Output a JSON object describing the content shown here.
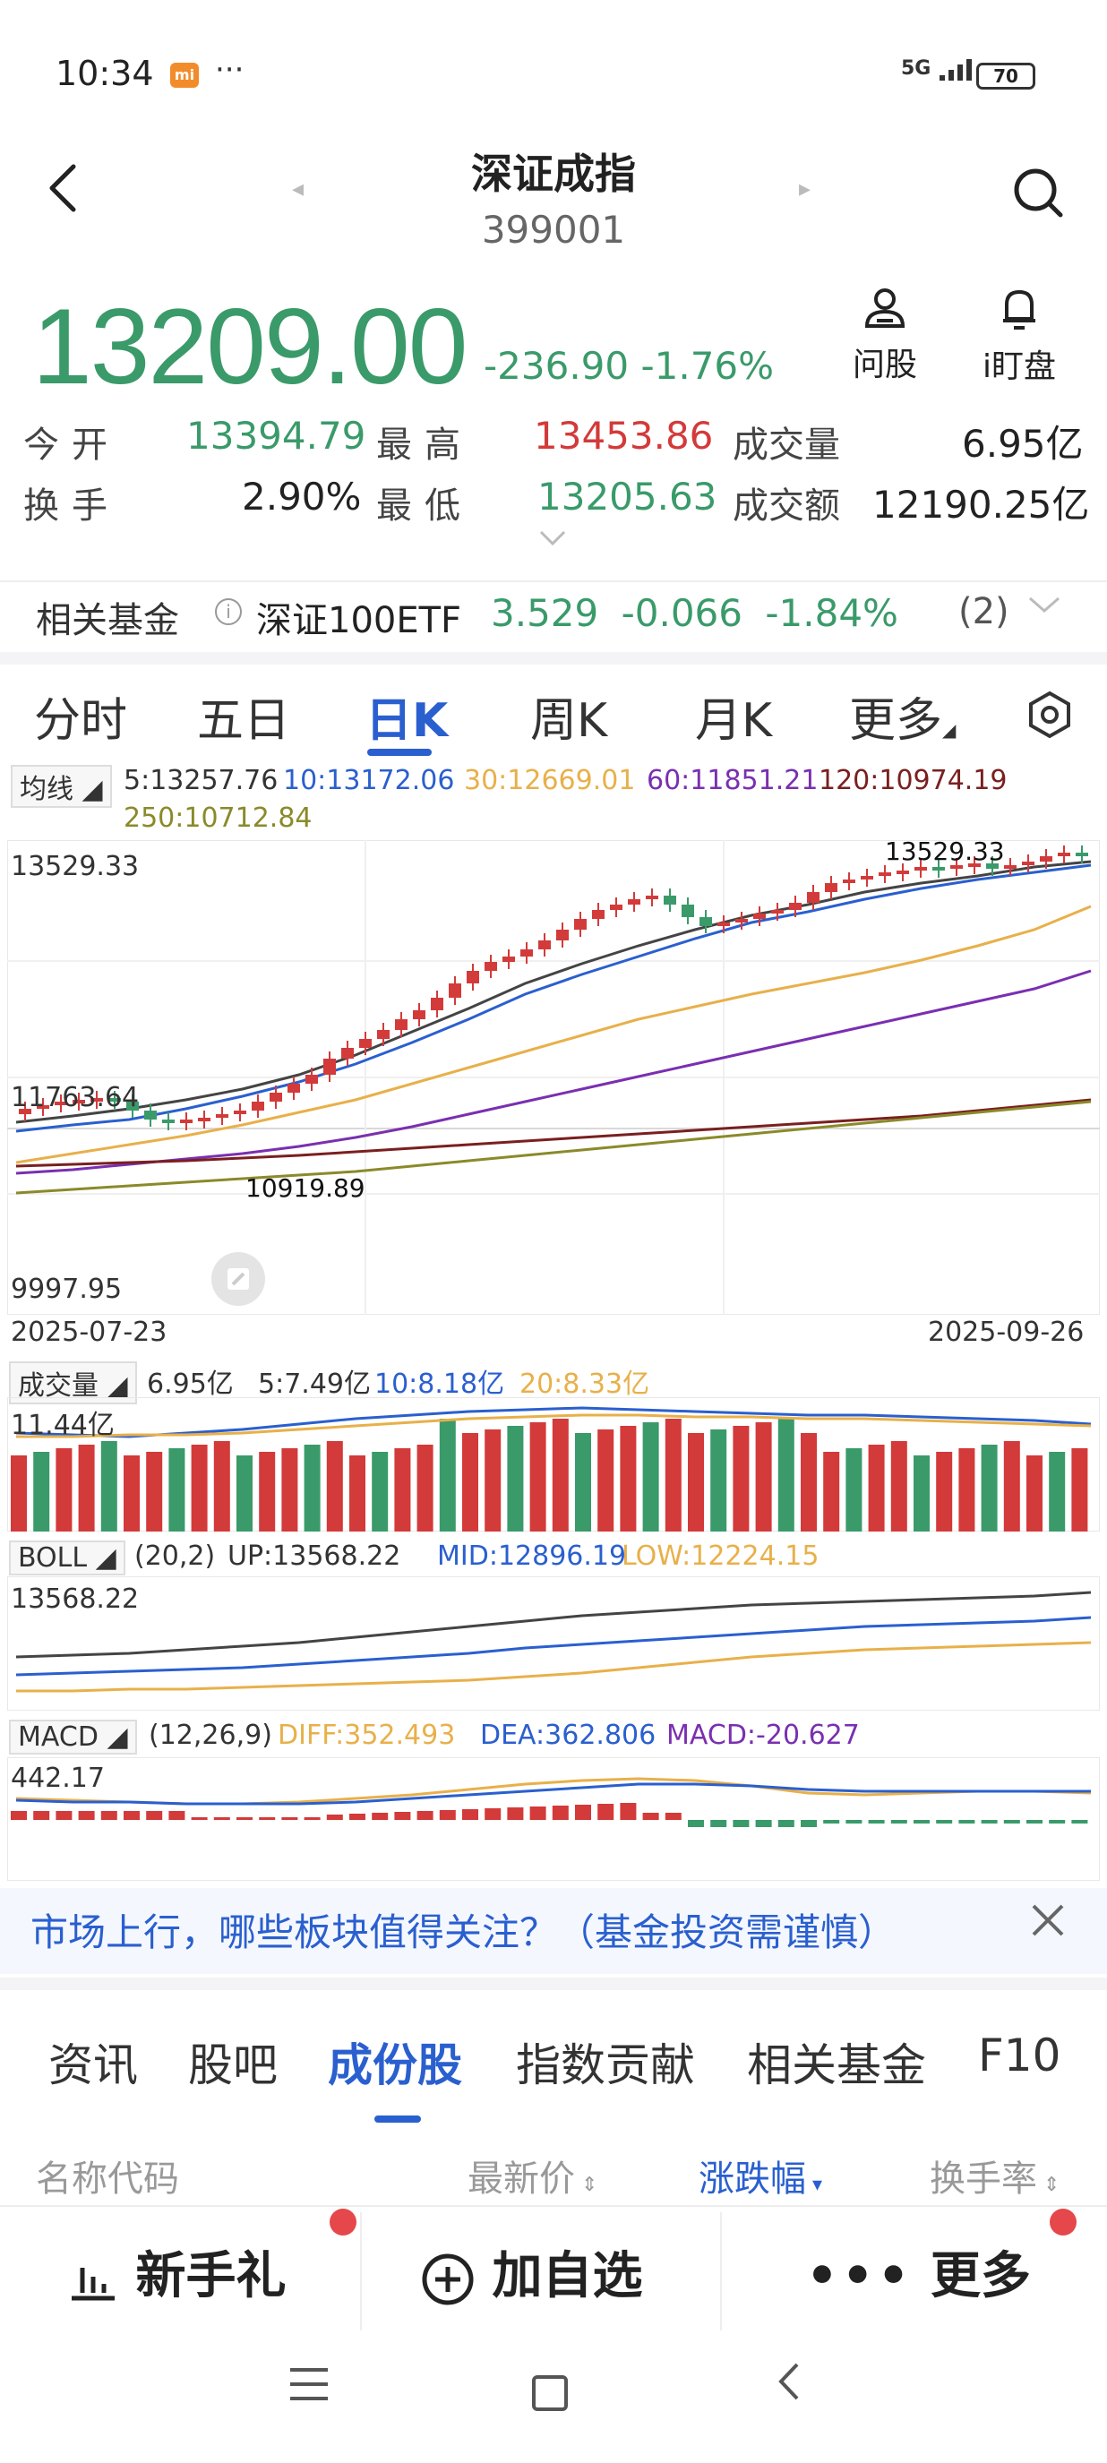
{
  "status_bar": {
    "time": "10:34",
    "app_badge": "mi",
    "dots": "···",
    "network": "5G",
    "battery": "70"
  },
  "header": {
    "title": "深证成指",
    "code": "399001",
    "prev_arrow": "◂",
    "next_arrow": "▸"
  },
  "quote": {
    "price": "13209.00",
    "change": "-236.90",
    "change_pct": "-1.76%",
    "ask_label": "问股",
    "watch_label": "i盯盘",
    "stats": {
      "open_label": "今开",
      "open_value": "13394.79",
      "high_label": "最高",
      "high_value": "13453.86",
      "volume_label": "成交量",
      "volume_value": "6.95亿",
      "turnover_label": "换手",
      "turnover_value": "2.90%",
      "low_label": "最低",
      "low_value": "13205.63",
      "amount_label": "成交额",
      "amount_value": "12190.25亿"
    }
  },
  "related_fund": {
    "label": "相关基金",
    "name": "深证100ETF",
    "price": "3.529",
    "change": "-0.066",
    "change_pct": "-1.84%",
    "count": "(2)"
  },
  "chart_tabs": [
    {
      "label": "分时"
    },
    {
      "label": "五日"
    },
    {
      "label": "日K"
    },
    {
      "label": "周K"
    },
    {
      "label": "月K"
    },
    {
      "label": "更多"
    }
  ],
  "ma_legend": {
    "badge": "均线",
    "ma5": "5:13257.76",
    "ma10": "10:13172.06",
    "ma30": "30:12669.01",
    "ma60": "60:11851.21",
    "ma120": "120:10974.19",
    "ma250": "250:10712.84"
  },
  "kline": {
    "y_high": "13529.33",
    "y_mid": "11763.64",
    "y_low": "9997.95",
    "max_marker": "13529.33",
    "min_marker": "10919.89",
    "date_start": "2025-07-23",
    "date_end": "2025-09-26"
  },
  "volume_legend": {
    "badge": "成交量",
    "current": "6.95亿",
    "ma5": "5:7.49亿",
    "ma10": "10:8.18亿",
    "ma20": "20:8.33亿",
    "y_max": "11.44亿"
  },
  "boll_legend": {
    "badge": "BOLL",
    "params": "(20,2)",
    "up": "UP:13568.22",
    "mid": "MID:12896.19",
    "low": "LOW:12224.15",
    "y_max": "13568.22"
  },
  "macd_legend": {
    "badge": "MACD",
    "params": "(12,26,9)",
    "diff": "DIFF:352.493",
    "dea": "DEA:362.806",
    "macd": "MACD:-20.627",
    "y_max": "442.17"
  },
  "colors": {
    "up": "#d33a3a",
    "down": "#3a9a6a",
    "accent": "#2a5fcf",
    "ma10": "#2a5fcf",
    "ma30": "#e8b04a",
    "ma60": "#7a2fb0",
    "ma120": "#7a1f1f",
    "ma250": "#8a8a2a"
  },
  "banner": {
    "text": "市场上行，哪些板块值得关注？（基金投资需谨慎）"
  },
  "bottom_tabs": [
    {
      "label": "资讯"
    },
    {
      "label": "股吧"
    },
    {
      "label": "成份股"
    },
    {
      "label": "指数贡献"
    },
    {
      "label": "相关基金"
    },
    {
      "label": "F10"
    }
  ],
  "table_headers": {
    "name": "名称代码",
    "price": "最新价",
    "change": "涨跌幅",
    "turnover": "换手率"
  },
  "bottom_actions": {
    "gift": "新手礼",
    "add": "加自选",
    "more": "更多"
  }
}
